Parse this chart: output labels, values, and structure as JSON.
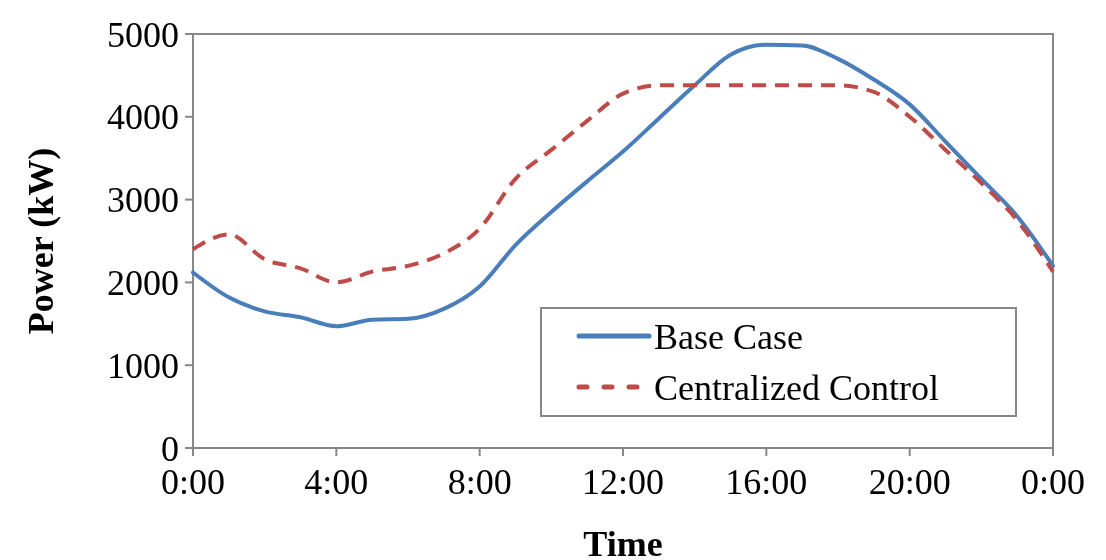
{
  "chart_data": {
    "type": "line",
    "xlabel": "Time",
    "ylabel": "Power (kW)",
    "x": [
      0,
      1,
      2,
      3,
      4,
      5,
      6,
      7,
      8,
      9,
      10,
      11,
      12,
      13,
      14,
      15,
      16,
      17,
      18,
      19,
      20,
      21,
      22,
      23,
      24
    ],
    "series": [
      {
        "name": "Base Case",
        "color": "#4a7ebb",
        "line_style": "solid",
        "values": [
          2120,
          1820,
          1650,
          1580,
          1470,
          1550,
          1560,
          1680,
          1950,
          2450,
          2850,
          3220,
          3580,
          3980,
          4380,
          4750,
          4870,
          4860,
          4700,
          4450,
          4150,
          3700,
          3250,
          2800,
          2200
        ]
      },
      {
        "name": "Centralized Control",
        "color": "#be4b48",
        "line_style": "dashed",
        "values": [
          2400,
          2580,
          2280,
          2170,
          2000,
          2130,
          2200,
          2350,
          2650,
          3250,
          3600,
          3950,
          4280,
          4380,
          4380,
          4380,
          4380,
          4380,
          4380,
          4300,
          4000,
          3600,
          3200,
          2750,
          2130
        ]
      }
    ],
    "xlim": [
      0,
      24
    ],
    "xticks": [
      {
        "value": 0,
        "label": "0:00"
      },
      {
        "value": 4,
        "label": "4:00"
      },
      {
        "value": 8,
        "label": "8:00"
      },
      {
        "value": 12,
        "label": "12:00"
      },
      {
        "value": 16,
        "label": "16:00"
      },
      {
        "value": 20,
        "label": "20:00"
      },
      {
        "value": 24,
        "label": "0:00"
      }
    ],
    "ylim": [
      0,
      5000
    ],
    "yticks": [
      0,
      1000,
      2000,
      3000,
      4000,
      5000
    ],
    "grid": false,
    "legend": "bottom right",
    "marker": "none"
  }
}
